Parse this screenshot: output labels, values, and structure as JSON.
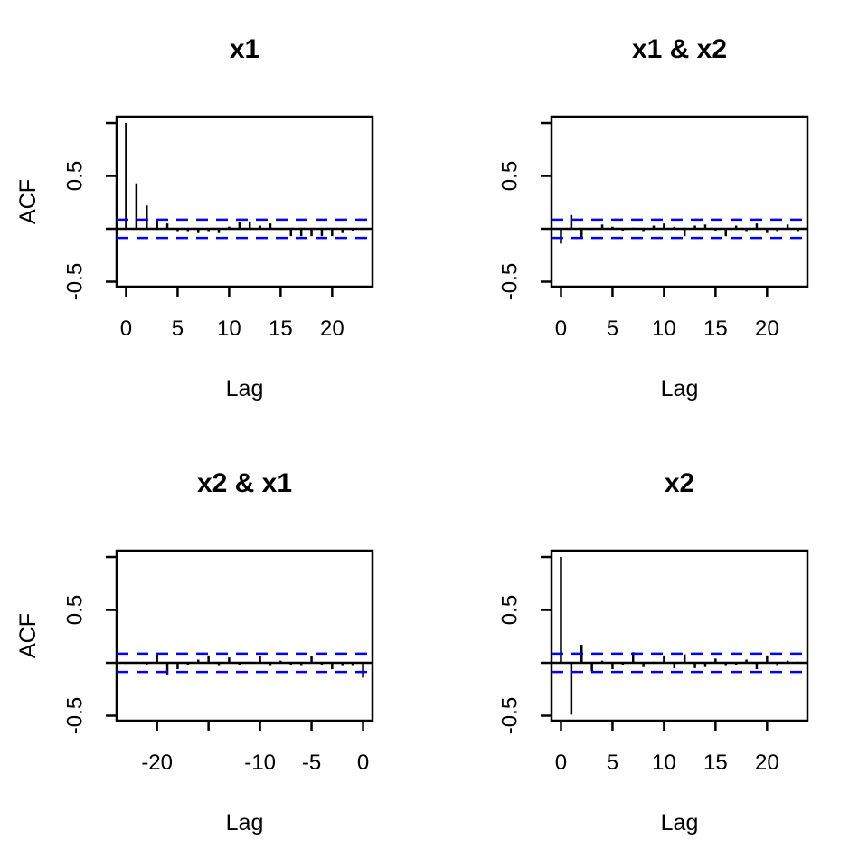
{
  "figure": {
    "background": "#ffffff",
    "axis_color": "#000000",
    "bar_color": "#000000",
    "ci_line_color": "#0000ff",
    "ci_dash_pattern": "13 9",
    "ylabel_left_column": "ACF",
    "xlabel_all": "Lag"
  },
  "chart_data": [
    {
      "type": "bar",
      "title": "x1",
      "xlabel": "Lag",
      "ylabel": "ACF",
      "legend": "none",
      "grid": false,
      "conf_band": 0.087,
      "xlim": [
        -0.92,
        23.92
      ],
      "ylim": [
        -0.547,
        1.06
      ],
      "xticks": {
        "values": [
          0,
          5,
          10,
          15,
          20
        ],
        "labels": [
          "0",
          "5",
          "10",
          "15",
          "20"
        ]
      },
      "yticks": {
        "values": [
          1.0,
          0.5,
          0.0,
          -0.5
        ],
        "labels": [
          "",
          "0.5",
          "",
          "-0.5"
        ]
      },
      "x": [
        0,
        1,
        2,
        3,
        4,
        5,
        6,
        7,
        8,
        9,
        10,
        11,
        12,
        13,
        14,
        15,
        16,
        17,
        18,
        19,
        20,
        21,
        22,
        23
      ],
      "values": [
        1.0,
        0.43,
        0.22,
        0.09,
        0.05,
        -0.03,
        -0.03,
        -0.04,
        -0.03,
        -0.04,
        0.02,
        0.06,
        0.07,
        0.03,
        0.05,
        -0.01,
        -0.07,
        -0.07,
        -0.07,
        -0.07,
        -0.07,
        -0.04,
        -0.02,
        -0.01
      ]
    },
    {
      "type": "bar",
      "title": "x1 & x2",
      "xlabel": "Lag",
      "ylabel": "",
      "legend": "none",
      "grid": false,
      "conf_band": 0.087,
      "xlim": [
        -0.92,
        23.92
      ],
      "ylim": [
        -0.547,
        1.06
      ],
      "xticks": {
        "values": [
          0,
          5,
          10,
          15,
          20
        ],
        "labels": [
          "0",
          "5",
          "10",
          "15",
          "20"
        ]
      },
      "yticks": {
        "values": [
          1.0,
          0.5,
          0.0,
          -0.5
        ],
        "labels": [
          "",
          "0.5",
          "",
          "-0.5"
        ]
      },
      "x": [
        0,
        1,
        2,
        3,
        4,
        5,
        6,
        7,
        8,
        9,
        10,
        11,
        12,
        13,
        14,
        15,
        16,
        17,
        18,
        19,
        20,
        21,
        22,
        23
      ],
      "values": [
        -0.14,
        0.13,
        -0.085,
        -0.01,
        0.04,
        0.02,
        -0.02,
        0.01,
        -0.03,
        0.03,
        0.05,
        0.02,
        -0.07,
        0.03,
        0.04,
        -0.02,
        -0.07,
        0.03,
        -0.03,
        0.05,
        -0.04,
        -0.03,
        0.04,
        -0.03
      ]
    },
    {
      "type": "bar",
      "title": "x2 & x1",
      "xlabel": "Lag",
      "ylabel": "ACF",
      "legend": "none",
      "grid": false,
      "conf_band": 0.087,
      "xlim": [
        -23.92,
        0.92
      ],
      "ylim": [
        -0.547,
        1.06
      ],
      "xticks": {
        "values": [
          -20,
          -15,
          -10,
          -5,
          0
        ],
        "labels": [
          "-20",
          "",
          "-10",
          "-5",
          "0"
        ]
      },
      "yticks": {
        "values": [
          1.0,
          0.5,
          0.0,
          -0.5
        ],
        "labels": [
          "",
          "0.5",
          "",
          "-0.5"
        ]
      },
      "x": [
        -23,
        -22,
        -21,
        -20,
        -19,
        -18,
        -17,
        -16,
        -15,
        -14,
        -13,
        -12,
        -11,
        -10,
        -9,
        -8,
        -7,
        -6,
        -5,
        -4,
        -3,
        -2,
        -1,
        0
      ],
      "values": [
        -0.01,
        0.01,
        -0.02,
        0.08,
        -0.11,
        -0.06,
        -0.02,
        0.03,
        0.07,
        -0.03,
        0.05,
        -0.02,
        0.01,
        0.06,
        -0.03,
        0.02,
        -0.02,
        -0.03,
        0.06,
        -0.02,
        -0.06,
        -0.03,
        -0.03,
        -0.14
      ]
    },
    {
      "type": "bar",
      "title": "x2",
      "xlabel": "Lag",
      "ylabel": "",
      "legend": "none",
      "grid": false,
      "conf_band": 0.087,
      "xlim": [
        -0.92,
        23.92
      ],
      "ylim": [
        -0.547,
        1.06
      ],
      "xticks": {
        "values": [
          0,
          5,
          10,
          15,
          20
        ],
        "labels": [
          "0",
          "5",
          "10",
          "15",
          "20"
        ]
      },
      "yticks": {
        "values": [
          1.0,
          0.5,
          0.0,
          -0.5
        ],
        "labels": [
          "",
          "0.5",
          "",
          "-0.5"
        ]
      },
      "x": [
        0,
        1,
        2,
        3,
        4,
        5,
        6,
        7,
        8,
        9,
        10,
        11,
        12,
        13,
        14,
        15,
        16,
        17,
        18,
        19,
        20,
        21,
        22,
        23
      ],
      "values": [
        1.0,
        -0.49,
        0.17,
        -0.08,
        0.02,
        -0.06,
        -0.02,
        0.1,
        -0.04,
        0.01,
        0.07,
        -0.05,
        0.08,
        -0.05,
        -0.04,
        0.04,
        -0.03,
        -0.02,
        0.03,
        -0.06,
        0.07,
        -0.03,
        0.02,
        0.01
      ]
    }
  ]
}
